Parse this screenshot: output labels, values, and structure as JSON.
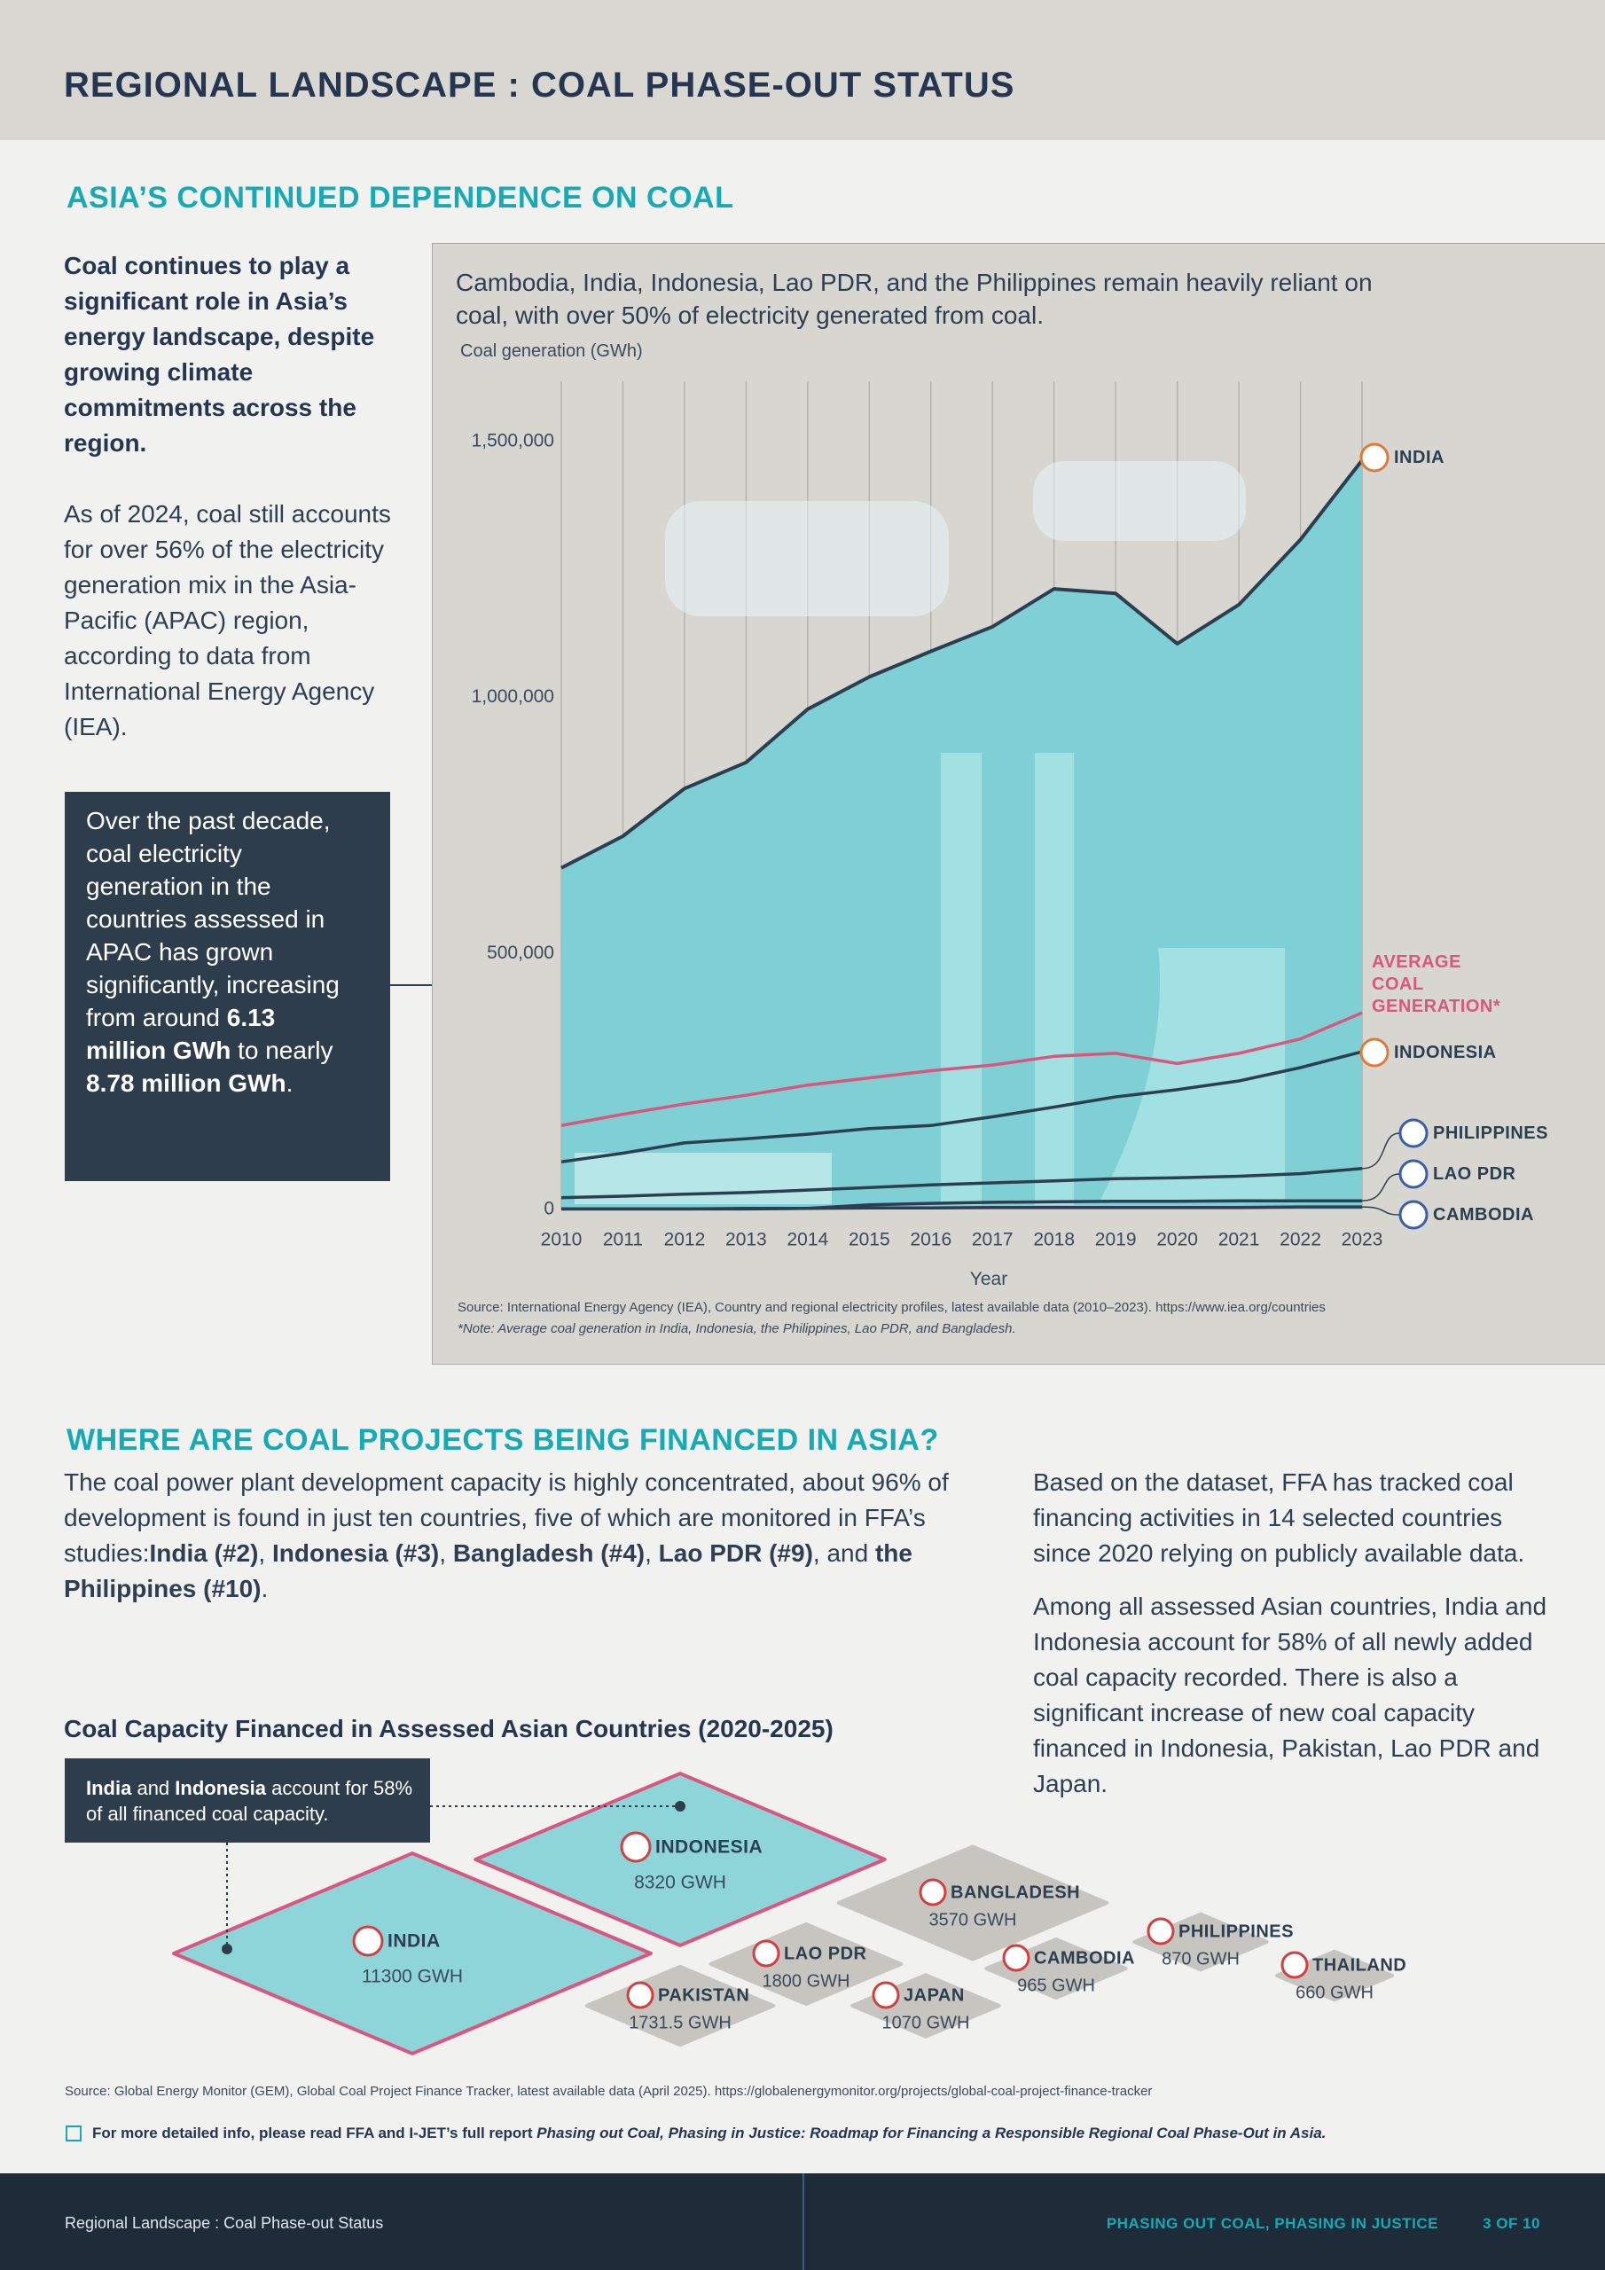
{
  "header": {
    "title": "REGIONAL LANDSCAPE : COAL PHASE-OUT STATUS"
  },
  "section1": {
    "heading": "ASIA’S CONTINUED DEPENDENCE ON COAL",
    "lead": "Coal continues to play a significant role in Asia’s energy landscape, despite growing climate commitments across the region.",
    "paragraph": "As of 2024, coal still accounts for over 56% of the electricity generation mix in the Asia-Pacific (APAC) region, according to data from International Energy Agency (IEA).",
    "callout": [
      "Over the past decade, coal electricity generation in the countries assessed in APAC has grown significantly, increasing from around ",
      {
        "text": "6.13 million GWh",
        "bold": true
      },
      " to nearly ",
      {
        "text": "8.78 million GWh",
        "bold": true
      },
      "."
    ]
  },
  "section2": {
    "heading": "WHERE ARE COAL PROJECTS BEING FINANCED IN ASIA?",
    "paragraph": [
      "The coal power plant development capacity is highly concentrated, about 96% of development is found in just ten countries, five of which are monitored in FFA’s studies:",
      {
        "text": "India (#2)",
        "bold": true
      },
      ", ",
      {
        "text": "Indonesia (#3)",
        "bold": true
      },
      ", ",
      {
        "text": "Bangladesh (#4)",
        "bold": true
      },
      ", ",
      {
        "text": "Lao PDR (#9)",
        "bold": true
      },
      ", and ",
      {
        "text": "the Philippines (#10)",
        "bold": true
      },
      "."
    ],
    "right_paragraphs": [
      "Based on the dataset, FFA has tracked coal financing activities in 14 selected countries since 2020 relying on publicly available data.",
      "Among all assessed Asian countries, India and Indonesia account for 58% of all newly added coal capacity recorded. There is also a significant increase of new coal capacity financed in Indonesia, Pakistan, Lao PDR and Japan."
    ]
  },
  "chart_data": [
    {
      "type": "line",
      "title": "Cambodia, India, Indonesia, Lao PDR, and the Philippines remain heavily reliant on coal, with over 50% of electricity generated from coal.",
      "ylabel": "Coal generation (GWh)",
      "xlabel": "Year",
      "x": [
        2010,
        2011,
        2012,
        2013,
        2014,
        2015,
        2016,
        2017,
        2018,
        2019,
        2020,
        2021,
        2022,
        2023
      ],
      "xlim": [
        2010,
        2023
      ],
      "ylim": [
        0,
        1600000
      ],
      "yticks": [
        0,
        {
          "value": 500000,
          "label": "500,000"
        },
        {
          "value": 1000000,
          "label": "1,000,000"
        },
        {
          "value": 1500000,
          "label": "1,500,000"
        }
      ],
      "grid": "x",
      "series": [
        {
          "name": "INDIA",
          "color": "#2c3e50",
          "fill": "#7fd0d5",
          "values": [
            667000,
            729000,
            822000,
            873000,
            977000,
            1040000,
            1090000,
            1138000,
            1212000,
            1203000,
            1105000,
            1181000,
            1308000,
            1463000
          ]
        },
        {
          "name": "AVERAGE COAL GENERATION*",
          "color": "#d9577f",
          "values": [
            164000,
            186000,
            206000,
            223000,
            243000,
            257000,
            271000,
            282000,
            299000,
            305000,
            285000,
            305000,
            333000,
            384000
          ]
        },
        {
          "name": "INDONESIA",
          "color": "#2c3e50",
          "values": [
            93000,
            110000,
            130000,
            138000,
            147000,
            158000,
            164000,
            181000,
            200000,
            220000,
            234000,
            251000,
            277000,
            308000
          ]
        },
        {
          "name": "PHILIPPINES",
          "color": "#2c3e50",
          "values": [
            23000,
            26000,
            30000,
            33000,
            38000,
            43000,
            48000,
            52000,
            56000,
            60000,
            62000,
            65000,
            70000,
            80000
          ]
        },
        {
          "name": "LAO PDR",
          "color": "#2c3e50",
          "values": [
            1000,
            1000,
            1000,
            1000,
            2000,
            9000,
            12000,
            14000,
            15000,
            16000,
            16000,
            17000,
            17000,
            17000
          ]
        },
        {
          "name": "CAMBODIA",
          "color": "#2c3e50",
          "values": [
            1000,
            1000,
            1000,
            2000,
            2000,
            3000,
            3000,
            4000,
            4000,
            4000,
            4000,
            4000,
            5000,
            5000
          ]
        }
      ],
      "source": "Source: International Energy Agency (IEA), Country and regional electricity profiles, latest available data (2010–2023). https://www.iea.org/countries",
      "note": "*Note: Average coal generation in India, Indonesia, the Philippines, Lao PDR, and Bangladesh."
    },
    {
      "type": "diamond",
      "title": "Coal Capacity Financed in Assessed Asian Countries (2020-2025)",
      "categories": [
        "INDIA",
        "INDONESIA",
        "BANGLADESH",
        "LAO PDR",
        "PAKISTAN",
        "CAMBODIA",
        "JAPAN",
        "PHILIPPINES",
        "THAILAND"
      ],
      "values": [
        11300,
        8320,
        3570,
        1800,
        1731.5,
        965,
        1070,
        870,
        660
      ],
      "value_labels": [
        "11300 GWH",
        "8320 GWH",
        "3570 GWH",
        "1800 GWH",
        "1731.5 GWH",
        "965 GWH",
        "1070 GWH",
        "870 GWH",
        "660 GWH"
      ],
      "colors": [
        "#8dd5d9",
        "#8dd5d9",
        "#c6c5c0",
        "#c6c5c0",
        "#c6c5c0",
        "#c6c5c0",
        "#c6c5c0",
        "#c6c5c0",
        "#c6c5c0"
      ],
      "borders": [
        "#d9577f",
        "#d9577f",
        "#c6c5c0",
        "#c6c5c0",
        "#c6c5c0",
        "#c6c5c0",
        "#c6c5c0",
        "#c6c5c0",
        "#c6c5c0"
      ],
      "callout": [
        {
          "text": "India",
          "bold": true
        },
        " and ",
        {
          "text": "Indonesia",
          "bold": true
        },
        " account for 58% of all financed coal capacity."
      ],
      "source": "Source: Global Energy Monitor (GEM), Global Coal Project Finance Tracker, latest available data (April 2025). https://globalenergymonitor.org/projects/global-coal-project-finance-tracker"
    }
  ],
  "note": [
    {
      "text": "For more detailed info, please read FFA and I-JET’s full report ",
      "bold": true
    },
    {
      "text": "Phasing out Coal, Phasing in Justice: Roadmap for Financing a Responsible Regional Coal Phase-Out in Asia.",
      "bold": true,
      "italic": true
    }
  ],
  "footer": {
    "left": "Regional Landscape : Coal Phase-out Status",
    "series_title": "PHASING OUT COAL, PHASING IN JUSTICE",
    "page": "3 OF 10"
  }
}
